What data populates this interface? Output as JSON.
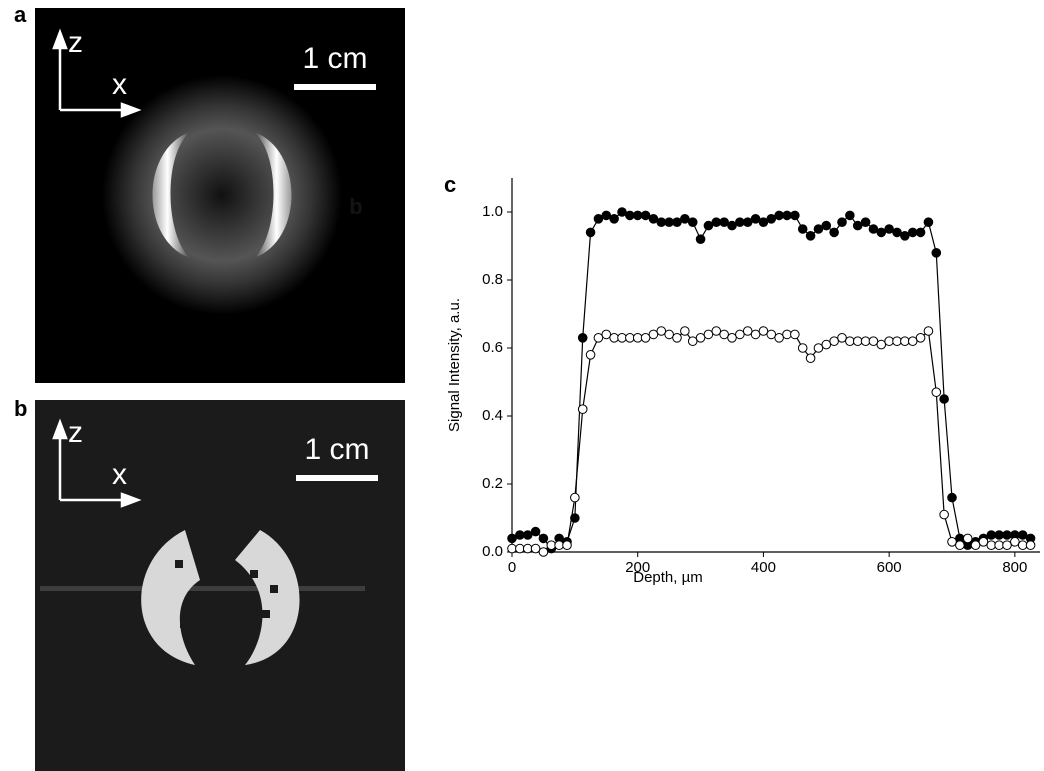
{
  "panels": [
    {
      "label": "a",
      "axis_z": "z",
      "axis_x": "x",
      "scale": "1 cm",
      "note": "b"
    },
    {
      "label": "b",
      "axis_z": "z",
      "axis_x": "x",
      "scale": "1 cm"
    }
  ],
  "chart_data": {
    "type": "line",
    "label": "c",
    "x_label": "Depth, µm",
    "y_label": "Signal Intensity, a.u.",
    "xlim": [
      0,
      840
    ],
    "ylim": [
      0,
      1.1
    ],
    "xticks": [
      0,
      200,
      400,
      600,
      800
    ],
    "yticks": [
      {
        "value": 0,
        "label": "0.0"
      },
      0.2,
      0.4,
      0.6,
      0.8,
      {
        "value": 1,
        "label": "1.0"
      }
    ],
    "x": [
      0,
      12.5,
      25,
      37.5,
      50,
      62.5,
      75,
      87.5,
      100,
      112.5,
      125,
      137.5,
      150,
      162.5,
      175,
      187.5,
      200,
      212.5,
      225,
      237.5,
      250,
      262.5,
      275,
      287.5,
      300,
      312.5,
      325,
      337.5,
      350,
      362.5,
      375,
      387.5,
      400,
      412.5,
      425,
      437.5,
      450,
      462.5,
      475,
      487.5,
      500,
      512.5,
      525,
      537.5,
      550,
      562.5,
      575,
      587.5,
      600,
      612.5,
      625,
      637.5,
      650,
      662.5,
      675,
      687.5,
      700,
      712.5,
      725,
      737.5,
      750,
      762.5,
      775,
      787.5,
      800,
      812.5,
      825
    ],
    "series": [
      {
        "marker": "filled",
        "color": "#000000",
        "values": [
          0.04,
          0.05,
          0.05,
          0.06,
          0.04,
          0.01,
          0.04,
          0.03,
          0.1,
          0.63,
          0.94,
          0.98,
          0.99,
          0.98,
          1.0,
          0.99,
          0.99,
          0.99,
          0.98,
          0.97,
          0.97,
          0.97,
          0.98,
          0.97,
          0.92,
          0.96,
          0.97,
          0.97,
          0.96,
          0.97,
          0.97,
          0.98,
          0.97,
          0.98,
          0.99,
          0.99,
          0.99,
          0.95,
          0.93,
          0.95,
          0.96,
          0.94,
          0.97,
          0.99,
          0.96,
          0.97,
          0.95,
          0.94,
          0.95,
          0.94,
          0.93,
          0.94,
          0.94,
          0.97,
          0.88,
          0.45,
          0.16,
          0.04,
          0.02,
          0.03,
          0.04,
          0.05,
          0.05,
          0.05,
          0.05,
          0.05,
          0.04
        ]
      },
      {
        "marker": "open",
        "color": "#000000",
        "values": [
          0.01,
          0.01,
          0.01,
          0.01,
          0.0,
          0.02,
          0.02,
          0.02,
          0.16,
          0.42,
          0.58,
          0.63,
          0.64,
          0.63,
          0.63,
          0.63,
          0.63,
          0.63,
          0.64,
          0.65,
          0.64,
          0.63,
          0.65,
          0.62,
          0.63,
          0.64,
          0.65,
          0.64,
          0.63,
          0.64,
          0.65,
          0.64,
          0.65,
          0.64,
          0.63,
          0.64,
          0.64,
          0.6,
          0.57,
          0.6,
          0.61,
          0.62,
          0.63,
          0.62,
          0.62,
          0.62,
          0.62,
          0.61,
          0.62,
          0.62,
          0.62,
          0.62,
          0.63,
          0.65,
          0.47,
          0.11,
          0.03,
          0.02,
          0.04,
          0.02,
          0.03,
          0.02,
          0.02,
          0.02,
          0.03,
          0.02,
          0.02
        ]
      }
    ]
  }
}
